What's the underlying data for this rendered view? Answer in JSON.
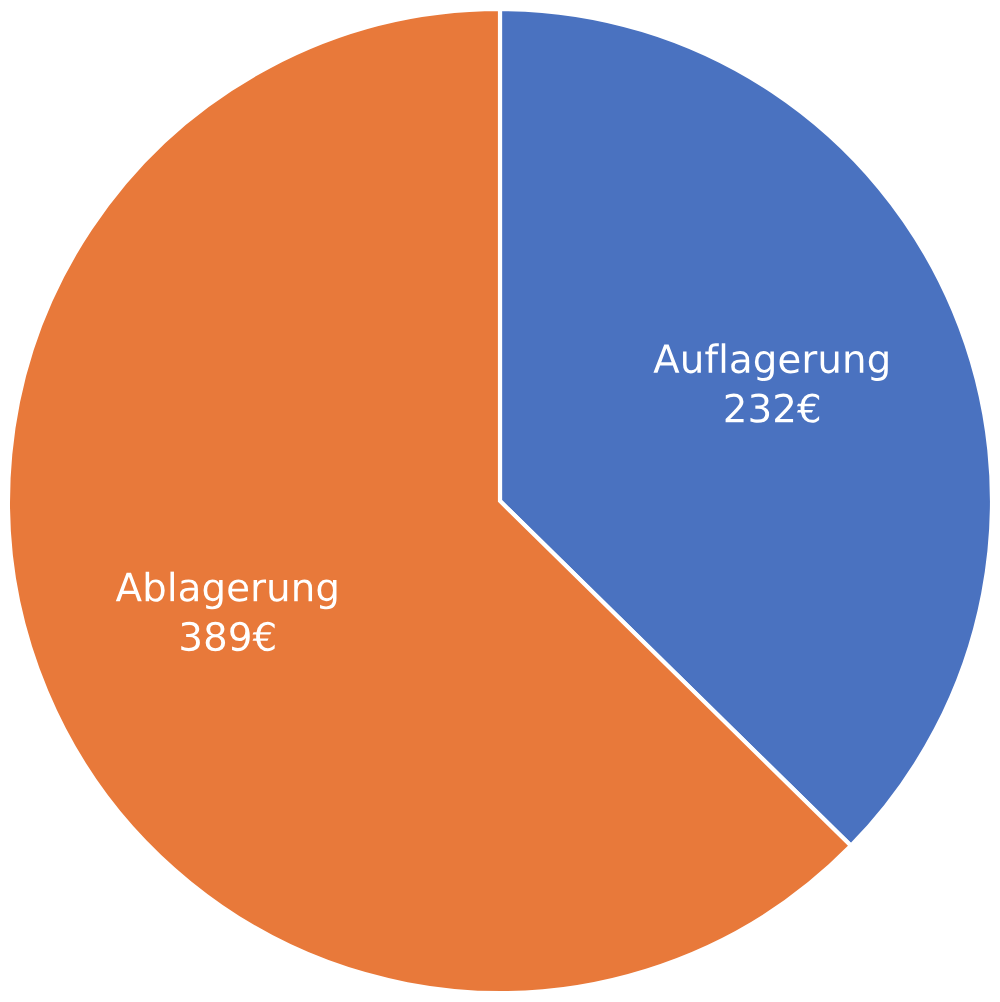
{
  "chart_data": {
    "type": "pie",
    "categories": [
      "Auflagerung",
      "Ablagerung"
    ],
    "values": [
      232,
      389
    ],
    "value_labels": [
      "232€",
      "389€"
    ],
    "colors": [
      "#4a72c0",
      "#e8793a"
    ],
    "legend": false
  }
}
